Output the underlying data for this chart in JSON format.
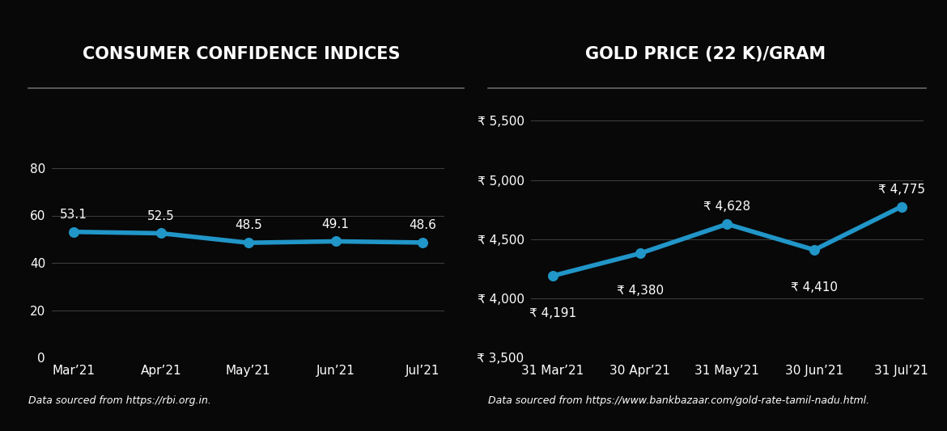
{
  "bg_color": "#080808",
  "text_color": "#ffffff",
  "line_color": "#2196c8",
  "grid_color": "#404040",
  "separator_color": "#666666",
  "left_title": "CONSUMER CONFIDENCE INDICES",
  "left_x_labels": [
    "Mar’21",
    "Apr’21",
    "May’21",
    "Jun’21",
    "Jul’21"
  ],
  "left_y_values": [
    53.1,
    52.5,
    48.5,
    49.1,
    48.6
  ],
  "left_y_labels": [
    "53.1",
    "52.5",
    "48.5",
    "49.1",
    "48.6"
  ],
  "left_ylim": [
    0,
    100
  ],
  "left_yticks": [
    0,
    20,
    40,
    60,
    80
  ],
  "left_source": "Data sourced from https://rbi.org.in.",
  "left_label_va": [
    "bottom",
    "bottom",
    "bottom",
    "bottom",
    "bottom"
  ],
  "left_label_offset_pts": [
    10,
    10,
    10,
    10,
    10
  ],
  "right_title": "GOLD PRICE (22 K)/GRAM",
  "right_x_labels": [
    "31 Mar’21",
    "30 Apr’21",
    "31 May’21",
    "30 Jun’21",
    "31 Jul’21"
  ],
  "right_y_values": [
    4191,
    4380,
    4628,
    4410,
    4775
  ],
  "right_y_labels": [
    "₹ 4,191",
    "₹ 4,380",
    "₹ 4,628",
    "₹ 4,410",
    "₹ 4,775"
  ],
  "right_ylim": [
    3500,
    5500
  ],
  "right_yticks": [
    3500,
    4000,
    4500,
    5000,
    5500
  ],
  "right_ytick_labels": [
    "₹ 3,500",
    "₹ 4,000",
    "₹ 4,500",
    "₹ 5,000",
    "₹ 5,500"
  ],
  "right_source": "Data sourced from https://www.bankbazaar.com/gold-rate-tamil-nadu.html.",
  "right_label_offset_pts": [
    -28,
    -28,
    10,
    -28,
    10
  ],
  "title_fontsize": 15,
  "tick_fontsize": 11,
  "label_fontsize": 11,
  "source_fontsize": 9
}
